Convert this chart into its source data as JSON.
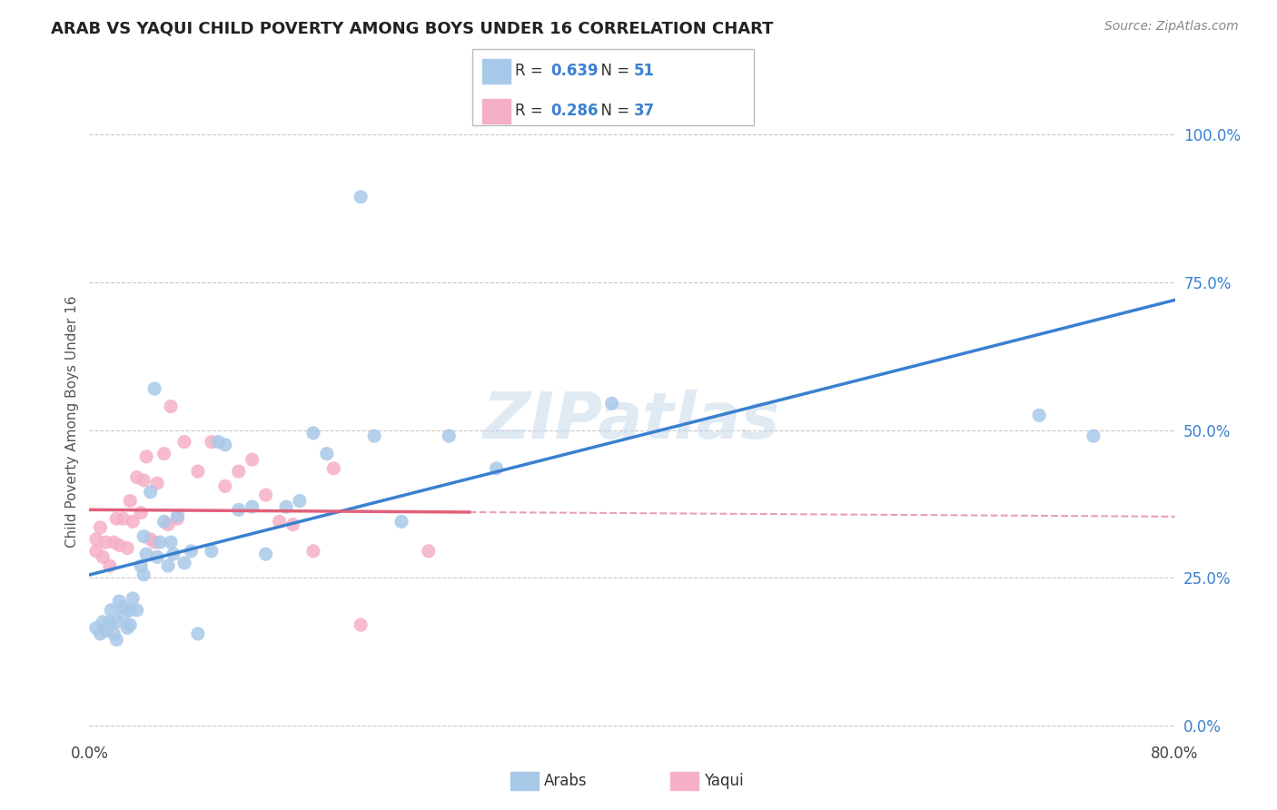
{
  "title": "ARAB VS YAQUI CHILD POVERTY AMONG BOYS UNDER 16 CORRELATION CHART",
  "source": "Source: ZipAtlas.com",
  "ylabel": "Child Poverty Among Boys Under 16",
  "xlim": [
    0.0,
    0.8
  ],
  "ylim": [
    -0.02,
    1.05
  ],
  "ytick_positions": [
    0.0,
    0.25,
    0.5,
    0.75,
    1.0
  ],
  "ytick_labels": [
    "0.0%",
    "25.0%",
    "50.0%",
    "75.0%",
    "100.0%"
  ],
  "arab_R": 0.639,
  "arab_N": 51,
  "yaqui_R": 0.286,
  "yaqui_N": 37,
  "arab_color": "#a8c8e8",
  "yaqui_color": "#f5b0c5",
  "arab_line_color": "#3a80d0",
  "yaqui_line_color": "#e0607a",
  "yaqui_dash_color": "#e8a0b0",
  "grid_color": "#c8c8c8",
  "watermark": "ZIPatlas",
  "arab_x": [
    0.005,
    0.008,
    0.01,
    0.012,
    0.015,
    0.016,
    0.018,
    0.02,
    0.02,
    0.022,
    0.025,
    0.025,
    0.028,
    0.03,
    0.03,
    0.032,
    0.035,
    0.038,
    0.04,
    0.04,
    0.042,
    0.045,
    0.048,
    0.05,
    0.052,
    0.055,
    0.058,
    0.06,
    0.062,
    0.065,
    0.07,
    0.075,
    0.08,
    0.09,
    0.095,
    0.1,
    0.11,
    0.12,
    0.13,
    0.145,
    0.155,
    0.165,
    0.175,
    0.2,
    0.21,
    0.23,
    0.265,
    0.3,
    0.385,
    0.7,
    0.74
  ],
  "arab_y": [
    0.165,
    0.155,
    0.175,
    0.16,
    0.175,
    0.195,
    0.155,
    0.175,
    0.145,
    0.21,
    0.185,
    0.2,
    0.165,
    0.195,
    0.17,
    0.215,
    0.195,
    0.27,
    0.32,
    0.255,
    0.29,
    0.395,
    0.57,
    0.285,
    0.31,
    0.345,
    0.27,
    0.31,
    0.29,
    0.355,
    0.275,
    0.295,
    0.155,
    0.295,
    0.48,
    0.475,
    0.365,
    0.37,
    0.29,
    0.37,
    0.38,
    0.495,
    0.46,
    0.895,
    0.49,
    0.345,
    0.49,
    0.435,
    0.545,
    0.525,
    0.49
  ],
  "yaqui_x": [
    0.005,
    0.005,
    0.008,
    0.01,
    0.012,
    0.015,
    0.018,
    0.02,
    0.022,
    0.025,
    0.028,
    0.03,
    0.032,
    0.035,
    0.038,
    0.04,
    0.042,
    0.045,
    0.048,
    0.05,
    0.055,
    0.058,
    0.06,
    0.065,
    0.07,
    0.08,
    0.09,
    0.1,
    0.11,
    0.12,
    0.13,
    0.14,
    0.15,
    0.165,
    0.18,
    0.2,
    0.25
  ],
  "yaqui_y": [
    0.295,
    0.315,
    0.335,
    0.285,
    0.31,
    0.27,
    0.31,
    0.35,
    0.305,
    0.35,
    0.3,
    0.38,
    0.345,
    0.42,
    0.36,
    0.415,
    0.455,
    0.315,
    0.31,
    0.41,
    0.46,
    0.34,
    0.54,
    0.35,
    0.48,
    0.43,
    0.48,
    0.405,
    0.43,
    0.45,
    0.39,
    0.345,
    0.34,
    0.295,
    0.435,
    0.17,
    0.295
  ]
}
